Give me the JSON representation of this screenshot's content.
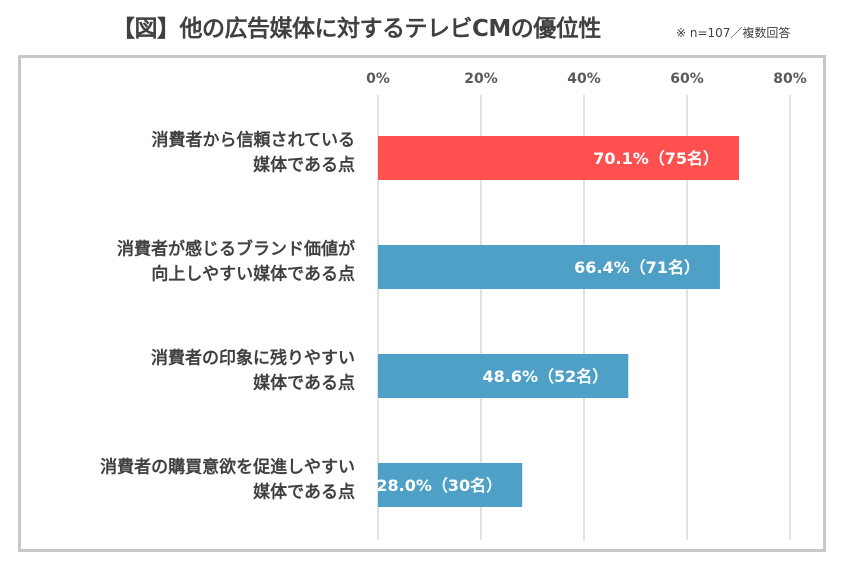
{
  "header": {
    "title": "【図】他の広告媒体に対するテレビCMの優位性",
    "note": "※ n=107／複数回答"
  },
  "colors": {
    "highlight": "#ff5050",
    "default": "#4fa0c6",
    "grid": "#d9d9d9",
    "frame": "#c8c8c8"
  },
  "chart_data": {
    "type": "bar",
    "orientation": "horizontal",
    "title": "【図】他の広告媒体に対するテレビCMの優位性",
    "categories": [
      [
        "消費者から信頼されている",
        "媒体である点"
      ],
      [
        "消費者が感じるブランド価値が",
        "向上しやすい媒体である点"
      ],
      [
        "消費者の印象に残りやすい",
        "媒体である点"
      ],
      [
        "消費者の購買意欲を促進しやすい",
        "媒体である点"
      ]
    ],
    "values": [
      70.1,
      66.4,
      48.6,
      28.0
    ],
    "data_labels": [
      "70.1%（75名）",
      "66.4%（71名）",
      "48.6%（52名）",
      "28.0%（30名）"
    ],
    "highlight_index": 0,
    "xlim": [
      0,
      80
    ],
    "ticks": [
      0,
      20,
      40,
      60,
      80
    ],
    "tick_labels": [
      "0%",
      "20%",
      "40%",
      "60%",
      "80%"
    ],
    "axis_position": "top",
    "grid": true,
    "legend": "none"
  }
}
